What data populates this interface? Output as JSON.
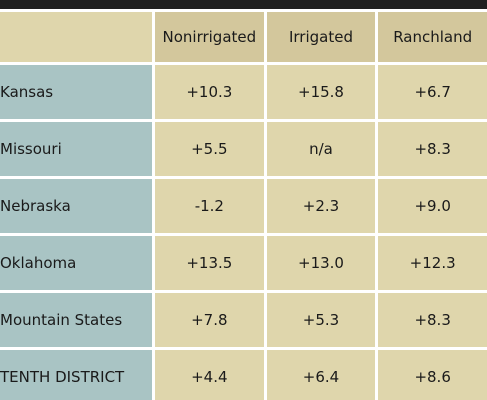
{
  "table": {
    "title": "",
    "columns": [
      "Nonirrigated",
      "Irrigated",
      "Ranchland"
    ],
    "rows": [
      {
        "label": "Kansas",
        "values": [
          "+10.3",
          "+15.8",
          "+6.7"
        ]
      },
      {
        "label": "Missouri",
        "values": [
          "+5.5",
          "n/a",
          "+8.3"
        ]
      },
      {
        "label": "Nebraska",
        "values": [
          "-1.2",
          "+2.3",
          "+9.0"
        ]
      },
      {
        "label": "Oklahoma",
        "values": [
          "+13.5",
          "+13.0",
          "+12.3"
        ]
      },
      {
        "label": "Mountain States",
        "values": [
          "+7.8",
          "+5.3",
          "+8.3"
        ]
      },
      {
        "label": "TENTH DISTRICT",
        "values": [
          "+4.4",
          "+6.4",
          "+8.6"
        ]
      }
    ]
  },
  "colors": {
    "header_dark": "#1f1f1f",
    "label_cell": "#a9c4c4",
    "value_cell": "#dfd6ac",
    "column_header": "#d3c79c"
  }
}
